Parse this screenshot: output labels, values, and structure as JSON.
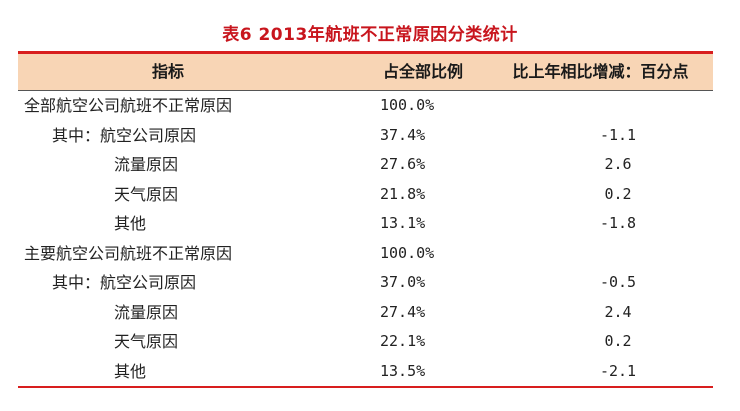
{
  "title": "表6 2013年航班不正常原因分类统计",
  "header": {
    "indicator": "指标",
    "share": "占全部比例",
    "change": "比上年相比增减：百分点"
  },
  "rows": [
    {
      "label": "全部航空公司航班不正常原因",
      "share": "100.0%",
      "change": ""
    },
    {
      "label": "其中：航空公司原因",
      "share": "37.4%",
      "change": "-1.1"
    },
    {
      "label": "流量原因",
      "share": "27.6%",
      "change": "2.6"
    },
    {
      "label": "天气原因",
      "share": "21.8%",
      "change": "0.2"
    },
    {
      "label": "其他",
      "share": "13.1%",
      "change": "-1.8"
    },
    {
      "label": "主要航空公司航班不正常原因",
      "share": "100.0%",
      "change": ""
    },
    {
      "label": "其中：航空公司原因",
      "share": "37.0%",
      "change": "-0.5"
    },
    {
      "label": "流量原因",
      "share": "27.4%",
      "change": "2.4"
    },
    {
      "label": "天气原因",
      "share": "22.1%",
      "change": "0.2"
    },
    {
      "label": "其他",
      "share": "13.5%",
      "change": "-2.1"
    }
  ],
  "colors": {
    "title": "#c8151d",
    "rule": "#d81e1e",
    "header_bg": "#f8d5b5"
  }
}
